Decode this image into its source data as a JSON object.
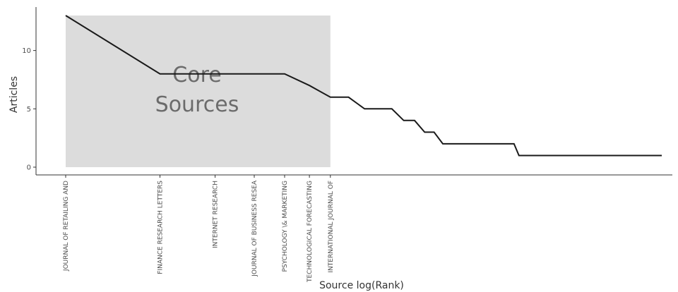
{
  "chart_data": {
    "type": "line",
    "xlabel": "Source log(Rank)",
    "ylabel": "Articles",
    "ylim": [
      0,
      13
    ],
    "yticks": [
      0,
      5,
      10
    ],
    "xscale": "log",
    "grid": false,
    "core_zone": {
      "label_line1": "Core",
      "label_line2": "Sources",
      "rank_from": 1,
      "rank_to": 7
    },
    "x_labeled": [
      {
        "rank": 1,
        "label": "JOURNAL OF RETAILING AND"
      },
      {
        "rank": 2,
        "label": "FINANCE RESEARCH LETTERS"
      },
      {
        "rank": 3,
        "label": "INTERNET RESEARCH"
      },
      {
        "rank": 4,
        "label": "JOURNAL OF BUSINESS RESEA"
      },
      {
        "rank": 5,
        "label": "PSYCHOLOGY \\& MARKETING"
      },
      {
        "rank": 6,
        "label": "TECHNOLOGICAL FORECASTING"
      },
      {
        "rank": 7,
        "label": "INTERNATIONAL JOURNAL OF"
      }
    ],
    "series": [
      {
        "points": [
          {
            "x": 1,
            "y": 13
          },
          {
            "x": 2,
            "y": 8
          },
          {
            "x": 3,
            "y": 8
          },
          {
            "x": 4,
            "y": 8
          },
          {
            "x": 5,
            "y": 8
          },
          {
            "x": 6,
            "y": 7
          },
          {
            "x": 7,
            "y": 6
          },
          {
            "x": 8,
            "y": 6
          },
          {
            "x": 9,
            "y": 5
          },
          {
            "x": 10,
            "y": 5
          },
          {
            "x": 11,
            "y": 5
          },
          {
            "x": 12,
            "y": 4
          },
          {
            "x": 13,
            "y": 4
          },
          {
            "x": 14,
            "y": 3
          },
          {
            "x": 15,
            "y": 3
          },
          {
            "x": 16,
            "y": 2
          },
          {
            "x": 17,
            "y": 2
          },
          {
            "x": 18,
            "y": 2
          },
          {
            "x": 19,
            "y": 2
          },
          {
            "x": 20,
            "y": 2
          },
          {
            "x": 21,
            "y": 2
          },
          {
            "x": 22,
            "y": 2
          },
          {
            "x": 23,
            "y": 2
          },
          {
            "x": 24,
            "y": 2
          },
          {
            "x": 25,
            "y": 2
          },
          {
            "x": 26,
            "y": 2
          },
          {
            "x": 27,
            "y": 2
          },
          {
            "x": 28,
            "y": 1
          },
          {
            "x": 80,
            "y": 1
          }
        ]
      }
    ],
    "colors": {
      "line": "#1a1a1a",
      "core_fill": "#dcdcdc",
      "axis": "#333333"
    }
  }
}
